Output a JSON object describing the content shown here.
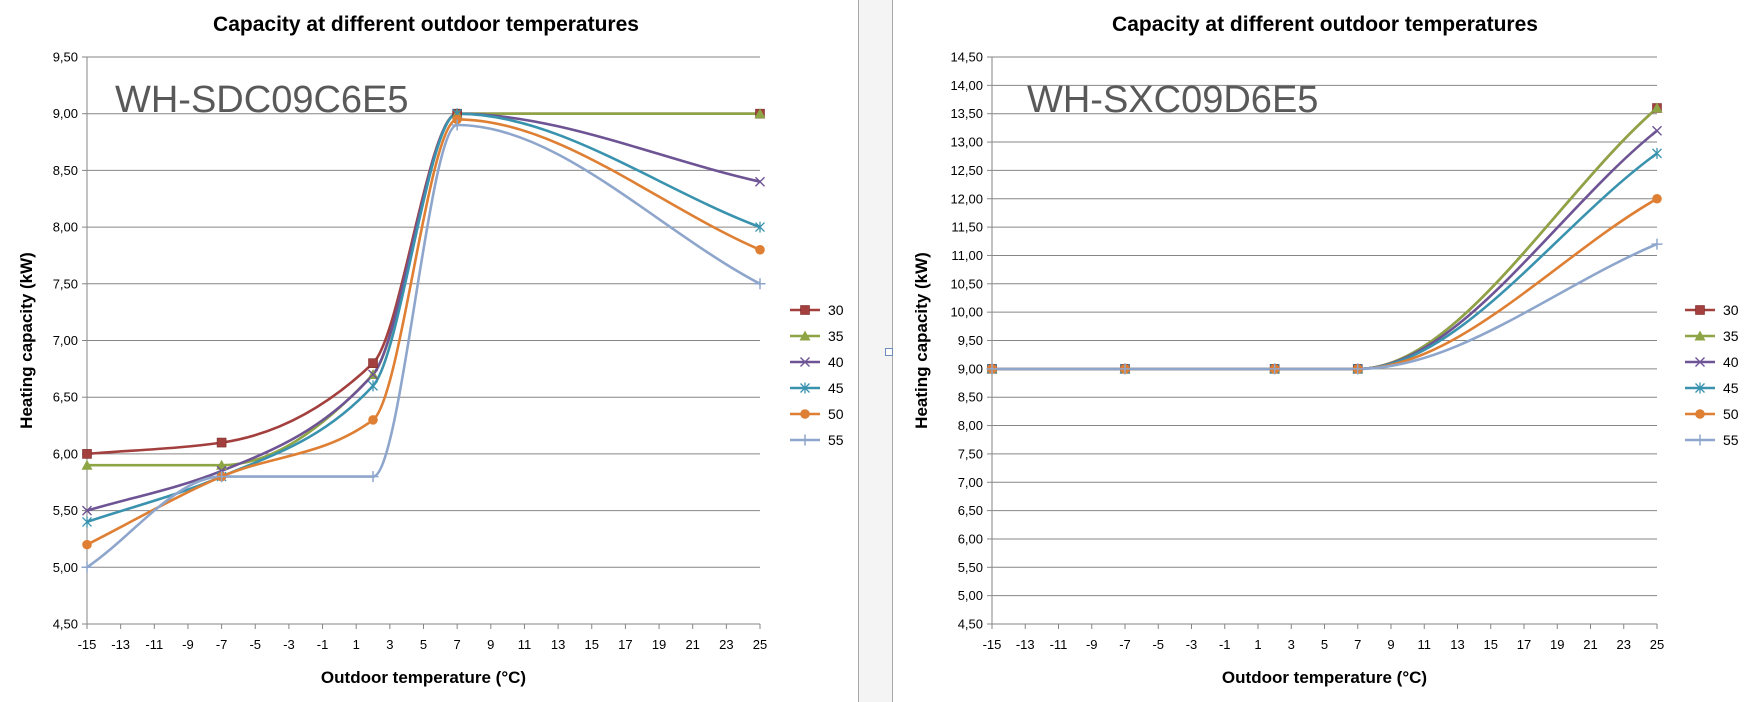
{
  "chart_data": [
    {
      "type": "line",
      "title": "Capacity  at different outdoor temperatures",
      "model_label": "WH-SDC09C6E5",
      "xlabel": "Outdoor temperature (°C)",
      "ylabel": "Heating capacity (kW)",
      "xlim": [
        -15,
        25
      ],
      "ylim": [
        4.5,
        9.5
      ],
      "x_ticks": [
        "-15",
        "-13",
        "-11",
        "-9",
        "-7",
        "-5",
        "-3",
        "-1",
        "1",
        "3",
        "5",
        "7",
        "9",
        "11",
        "13",
        "15",
        "17",
        "19",
        "21",
        "23",
        "25"
      ],
      "y_ticks": [
        "4,50",
        "5,00",
        "5,50",
        "6,00",
        "6,50",
        "7,00",
        "7,50",
        "8,00",
        "8,50",
        "9,00",
        "9,50"
      ],
      "x": [
        -15,
        -7,
        2,
        7,
        25
      ],
      "grid": true,
      "smooth": true,
      "legend_position": "right",
      "series": [
        {
          "name": "30",
          "color": "#a3403e",
          "marker": "square",
          "values": [
            6.0,
            6.1,
            6.8,
            9.0,
            9.0
          ]
        },
        {
          "name": "35",
          "color": "#8ea545",
          "marker": "triangle",
          "values": [
            5.9,
            5.9,
            6.7,
            9.0,
            9.0
          ]
        },
        {
          "name": "40",
          "color": "#6e5494",
          "marker": "x",
          "values": [
            5.5,
            5.85,
            6.7,
            9.0,
            8.4
          ]
        },
        {
          "name": "45",
          "color": "#3a93ae",
          "marker": "star",
          "values": [
            5.4,
            5.8,
            6.6,
            9.0,
            8.0
          ]
        },
        {
          "name": "50",
          "color": "#de7f33",
          "marker": "circle",
          "values": [
            5.2,
            5.8,
            6.3,
            8.95,
            7.8
          ]
        },
        {
          "name": "55",
          "color": "#8fa6cc",
          "marker": "plus",
          "values": [
            5.0,
            5.8,
            5.8,
            8.9,
            7.5
          ]
        }
      ]
    },
    {
      "type": "line",
      "title": "Capacity  at different outdoor temperatures",
      "model_label": "WH-SXC09D6E5",
      "xlabel": "Outdoor temperature (°C)",
      "ylabel": "Heating capacity (kW)",
      "xlim": [
        -15,
        25
      ],
      "ylim": [
        4.5,
        14.5
      ],
      "x_ticks": [
        "-15",
        "-13",
        "-11",
        "-9",
        "-7",
        "-5",
        "-3",
        "-1",
        "1",
        "3",
        "5",
        "7",
        "9",
        "11",
        "13",
        "15",
        "17",
        "19",
        "21",
        "23",
        "25"
      ],
      "y_ticks": [
        "4,50",
        "5,00",
        "5,50",
        "6,00",
        "6,50",
        "7,00",
        "7,50",
        "8,00",
        "8,50",
        "9,00",
        "9,50",
        "10,00",
        "10,50",
        "11,00",
        "11,50",
        "12,00",
        "12,50",
        "13,00",
        "13,50",
        "14,00",
        "14,50"
      ],
      "x": [
        -15,
        -7,
        2,
        7,
        25
      ],
      "grid": true,
      "smooth": true,
      "legend_position": "right",
      "series": [
        {
          "name": "30",
          "color": "#a3403e",
          "marker": "square",
          "values": [
            9.0,
            9.0,
            9.0,
            9.0,
            13.6
          ]
        },
        {
          "name": "35",
          "color": "#8ea545",
          "marker": "triangle",
          "values": [
            9.0,
            9.0,
            9.0,
            9.0,
            13.6
          ]
        },
        {
          "name": "40",
          "color": "#6e5494",
          "marker": "x",
          "values": [
            9.0,
            9.0,
            9.0,
            9.0,
            13.2
          ]
        },
        {
          "name": "45",
          "color": "#3a93ae",
          "marker": "star",
          "values": [
            9.0,
            9.0,
            9.0,
            9.0,
            12.8
          ]
        },
        {
          "name": "50",
          "color": "#de7f33",
          "marker": "circle",
          "values": [
            9.0,
            9.0,
            9.0,
            9.0,
            12.0
          ]
        },
        {
          "name": "55",
          "color": "#8fa6cc",
          "marker": "plus",
          "values": [
            9.0,
            9.0,
            9.0,
            9.0,
            11.2
          ]
        }
      ]
    }
  ]
}
